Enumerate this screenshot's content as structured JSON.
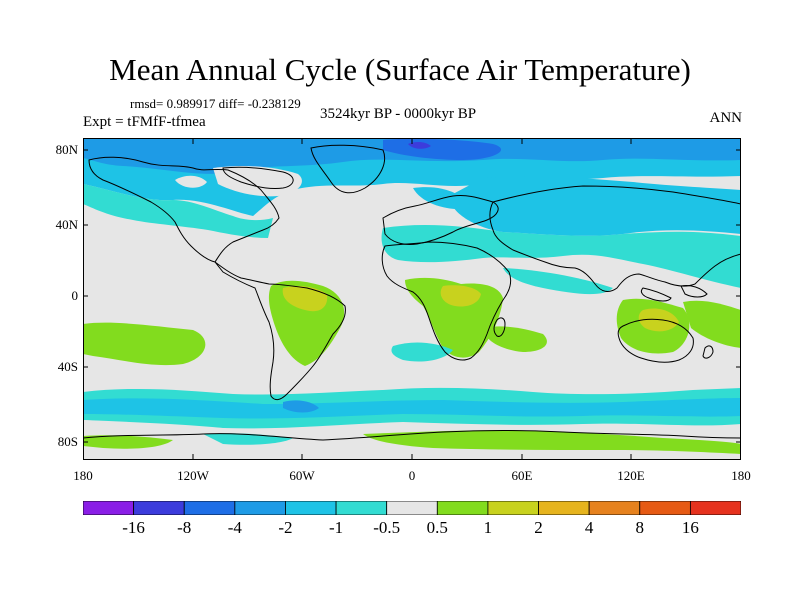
{
  "title": "Mean Annual Cycle (Surface Air Temperature)",
  "stats": "rmsd= 0.989917 diff= -0.238129",
  "experiment": "Expt = tFMfF-tfmea",
  "period": "3524kyr BP - 0000kyr BP",
  "season": "ANN",
  "lat_labels": [
    "80N",
    "40N",
    "0",
    "40S",
    "80S"
  ],
  "lon_labels": [
    "180",
    "120W",
    "60W",
    "0",
    "60E",
    "120E",
    "180"
  ],
  "colorbar": {
    "labels": [
      "-16",
      "-8",
      "-4",
      "-2",
      "-1",
      "-0.5",
      "0.5",
      "1",
      "2",
      "4",
      "8",
      "16"
    ],
    "colors": [
      "#8a1ee6",
      "#3c3cdc",
      "#1e6ee6",
      "#1e9be6",
      "#1ec3e6",
      "#32dcd2",
      "#e6e6e6",
      "#82dc1e",
      "#c8d21e",
      "#e6b41e",
      "#e6821e",
      "#e65a14",
      "#e6321e"
    ]
  }
}
